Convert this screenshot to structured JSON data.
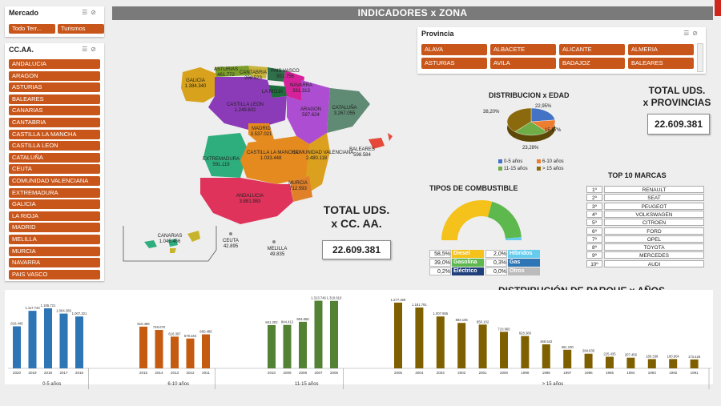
{
  "header": {
    "title": "INDICADORES x ZONA"
  },
  "mercado": {
    "title": "Mercado",
    "buttons": [
      "Todo Terr...",
      "Turismos"
    ]
  },
  "ccaa": {
    "title": "CC.AA.",
    "items": [
      "ANDALUCIA",
      "ARAGON",
      "ASTURIAS",
      "BALEARES",
      "CANARIAS",
      "CANTABRIA",
      "CASTILLA LA MANCHA",
      "CASTILLA LEON",
      "CATALUÑA",
      "CEUTA",
      "COMUNIDAD VALENCIANA",
      "EXTREMADURA",
      "GALICIA",
      "LA RIOJA",
      "MADRID",
      "MELILLA",
      "MURCIA",
      "NAVARRA",
      "PAIS VASCO"
    ]
  },
  "provincia": {
    "title": "Provincia",
    "items": [
      "ALAVA",
      "ALBACETE",
      "ALICANTE",
      "ALMERIA",
      "ASTURIAS",
      "AVILA",
      "BADAJOZ",
      "BALEARES"
    ]
  },
  "total_prov": {
    "line1": "TOTAL UDS.",
    "line2": "x PROVINCIAS",
    "value": "22.609.381"
  },
  "total_ccaa": {
    "line1": "TOTAL UDS.",
    "line2": "x CC. AA.",
    "value": "22.609.381"
  },
  "map": {
    "regions": [
      {
        "name": "GALICIA",
        "value": "1.384.340",
        "color": "#d8a21c"
      },
      {
        "name": "ASTURIAS",
        "value": "461.772",
        "color": "#7b9d2a"
      },
      {
        "name": "CANTABRIA",
        "value": "298.523",
        "color": "#c9b33a"
      },
      {
        "name": "PAIS VASCO",
        "value": "951.756",
        "color": "#2f6f49"
      },
      {
        "name": "NAVARRA",
        "value": "331.313",
        "color": "#d6229a"
      },
      {
        "name": "LA RIOJA",
        "value": "",
        "color": "#1d6e3c"
      },
      {
        "name": "CASTILLA LEON",
        "value": "1.249.602",
        "color": "#8b3bb7"
      },
      {
        "name": "ARAGON",
        "value": "587.624",
        "color": "#ad4dd2"
      },
      {
        "name": "CATALUÑA",
        "value": "3.267.055",
        "color": "#5f8a73"
      },
      {
        "name": "MADRID",
        "value": "3.537.021",
        "color": "#e58a1f"
      },
      {
        "name": "EXTREMADURA",
        "value": "591.119",
        "color": "#2fae7d"
      },
      {
        "name": "CASTILLA LA MANCHA",
        "value": "1.033.448",
        "color": "#e58a1f"
      },
      {
        "name": "COMUNIDAD VALENCIANA",
        "value": "2.480.118",
        "color": "#dca01f"
      },
      {
        "name": "ANDALUCIA",
        "value": "3.881.983",
        "color": "#e0335c"
      },
      {
        "name": "MURCIA",
        "value": "712.593",
        "color": "#e0812a"
      },
      {
        "name": "BALEARES",
        "value": "598.584",
        "color": "#e5493a"
      },
      {
        "name": "CANARIAS",
        "value": "1.045.466",
        "color": "#2fae7d"
      },
      {
        "name": "CEUTA",
        "value": "42.895",
        "color": "#888888"
      },
      {
        "name": "MELILLA",
        "value": "49.835",
        "color": "#888888"
      }
    ]
  },
  "edad": {
    "title": "DISTRIBUCION x EDAD",
    "slices": [
      {
        "label": "0-5 años",
        "pct": "22,95%",
        "value": 22.95,
        "color": "#4472c4"
      },
      {
        "label": "6-10 años",
        "pct": "15,57%",
        "value": 15.57,
        "color": "#ed7d31"
      },
      {
        "label": "11-15 años",
        "pct": "23,28%",
        "value": 23.28,
        "color": "#70ad47"
      },
      {
        "label": "> 15 años",
        "pct": "38,20%",
        "value": 38.2,
        "color": "#8b6a0e"
      }
    ]
  },
  "combustible": {
    "title": "TIPOS DE COMBUSTIBLE",
    "rows": [
      {
        "pct": "58,5%",
        "name": "Diesel",
        "color": "#f4c21b"
      },
      {
        "pct": "2,0%",
        "name": "Híbridos",
        "color": "#66ccee"
      },
      {
        "pct": "39,0%",
        "name": "Gasolina",
        "color": "#5db84d"
      },
      {
        "pct": "0,3%",
        "name": "Gas",
        "color": "#2e75b6"
      },
      {
        "pct": "0,2%",
        "name": "Eléctrico",
        "color": "#1f3f7a"
      },
      {
        "pct": "0,0%",
        "name": "Otros",
        "color": "#bbbbbb"
      }
    ]
  },
  "marcas": {
    "title": "TOP 10 MARCAS",
    "items": [
      {
        "rank": "1º",
        "name": "RENAULT"
      },
      {
        "rank": "2º",
        "name": "SEAT"
      },
      {
        "rank": "3º",
        "name": "PEUGEOT"
      },
      {
        "rank": "4º",
        "name": "VOLKSWAGEN"
      },
      {
        "rank": "5º",
        "name": "CITROEN"
      },
      {
        "rank": "6º",
        "name": "FORD"
      },
      {
        "rank": "7º",
        "name": "OPEL"
      },
      {
        "rank": "8º",
        "name": "TOYOTA"
      },
      {
        "rank": "9º",
        "name": "MERCEDES"
      },
      {
        "rank": "10º",
        "name": "AUDI"
      }
    ]
  },
  "chart_data": {
    "type": "bar",
    "title": "DISTRIBUCIÓN DE PARQUE x AÑOS",
    "groups": [
      {
        "name": "0-5 años",
        "color": "#2e75b6",
        "categories": [
          "2020",
          "2019",
          "2018",
          "2017",
          "2016"
        ],
        "values": [
          816445,
          1117744,
          1165721,
          1064289,
          1007321
        ],
        "labels": [
          "816.445",
          "1.117.744",
          "1.165.721",
          "1.064.289",
          "1.007.321"
        ]
      },
      {
        "name": "6-10 años",
        "color": "#c55a11",
        "categories": [
          "2015",
          "2014",
          "2013",
          "2012",
          "2011"
        ],
        "values": [
          810489,
          746070,
          616397,
          579343,
          660485
        ],
        "labels": [
          "810.489",
          "746.070",
          "616.397",
          "579.343",
          "660.485"
        ]
      },
      {
        "name": "11-15 años",
        "color": "#548235",
        "categories": [
          "2010",
          "2009",
          "2008",
          "2007",
          "2006"
        ],
        "values": [
          841202,
          844412,
          904658,
          1313746,
          1310610
        ],
        "labels": [
          "841.202",
          "844.412",
          "904.658",
          "1.313.746",
          "1.310.610"
        ]
      },
      {
        "name": "> 15 años",
        "color": "#7f6000",
        "categories": [
          "2005",
          "2004",
          "2003",
          "2002",
          "2001",
          "2000",
          "1999",
          "1998",
          "1997",
          "1996",
          "1995",
          "1994",
          "1993",
          "1992",
          "1991"
        ],
        "values": [
          1277469,
          1181791,
          1007955,
          883106,
          850102,
          710960,
          628380,
          466542,
          361100,
          284635,
          225435,
          207456,
          180338,
          180904,
          173426
        ],
        "labels": [
          "1.277.469",
          "1.181.791",
          "1.007.955",
          "883.106",
          "850.102",
          "710.960",
          "628.380",
          "466.542",
          "361.100",
          "284.635",
          "225.435",
          "207.456",
          "180.338",
          "180.904",
          "173.426"
        ]
      }
    ],
    "ylim": [
      0,
      1400000
    ],
    "grid": false
  }
}
